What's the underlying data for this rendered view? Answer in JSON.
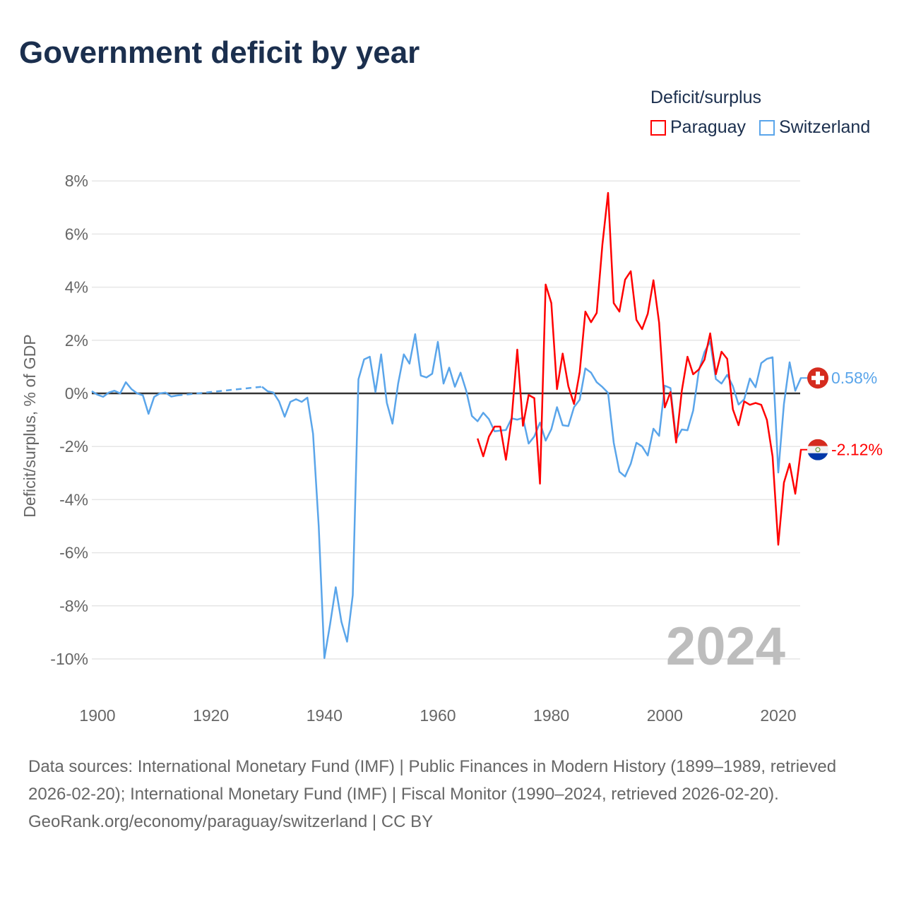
{
  "title": "Government deficit by year",
  "legend": {
    "title": "Deficit/surplus",
    "items": [
      {
        "label": "Paraguay",
        "color": "#ff0000"
      },
      {
        "label": "Switzerland",
        "color": "#5aa5ea"
      }
    ]
  },
  "year_label": "2024",
  "end_labels": {
    "switzerland": "0.58%",
    "paraguay": "-2.12%"
  },
  "footer": {
    "sources": "Data sources: International Monetary Fund (IMF) | Public Finances in Modern History (1899–1989, retrieved 2026-02-20); International Monetary Fund (IMF) | Fiscal Monitor (1990–2024, retrieved 2026-02-20).",
    "credit": "GeoRank.org/economy/paraguay/switzerland | CC BY"
  },
  "chart_data": {
    "type": "line",
    "title": "Government deficit by year",
    "xlabel": "",
    "ylabel": "Deficit/surplus, % of GDP",
    "xlim": [
      1899,
      2024
    ],
    "ylim": [
      -11,
      8.5
    ],
    "yticks": [
      8,
      6,
      4,
      2,
      0,
      -2,
      -4,
      -6,
      -8,
      -10
    ],
    "ytick_labels": [
      "8%",
      "6%",
      "4%",
      "2%",
      "0%",
      "-2%",
      "-4%",
      "-6%",
      "-8%",
      "-10%"
    ],
    "xticks": [
      1900,
      1920,
      1940,
      1960,
      1980,
      2000,
      2020
    ],
    "xtick_labels": [
      "1900",
      "1920",
      "1940",
      "1960",
      "1980",
      "2000",
      "2020"
    ],
    "grid": true,
    "legend_position": "top-right",
    "series": [
      {
        "name": "Switzerland",
        "color": "#5aa5ea",
        "start_year": 1899,
        "values": [
          0.08,
          -0.05,
          -0.13,
          0.03,
          0.1,
          0,
          0.42,
          0.16,
          0,
          -0.07,
          -0.77,
          -0.13,
          0,
          0.03,
          -0.12,
          -0.08,
          null,
          null,
          null,
          null,
          null,
          null,
          null,
          null,
          null,
          null,
          null,
          null,
          null,
          null,
          0.25,
          0.08,
          0.03,
          -0.3,
          -0.88,
          -0.32,
          -0.22,
          -0.32,
          -0.16,
          -1.52,
          -5.0,
          -9.97,
          -8.7,
          -7.3,
          -8.6,
          -9.35,
          -7.6,
          0.53,
          1.28,
          1.38,
          0.05,
          1.47,
          -0.35,
          -1.14,
          0.37,
          1.47,
          1.12,
          2.23,
          0.67,
          0.6,
          0.74,
          1.94,
          0.37,
          0.97,
          0.25,
          0.78,
          0.1,
          -0.85,
          -1.05,
          -0.73,
          -0.97,
          -1.43,
          -1.4,
          -1.38,
          -0.94,
          -0.99,
          -0.92,
          -1.89,
          -1.62,
          -1.1,
          -1.78,
          -1.35,
          -0.52,
          -1.2,
          -1.23,
          -0.52,
          -0.24,
          0.94,
          0.78,
          0.42,
          0.24,
          0.02,
          -1.86,
          -2.95,
          -3.13,
          -2.65,
          -1.86,
          -2.0,
          -2.34,
          -1.33,
          -1.6,
          0.29,
          0.2,
          -1.73,
          -1.36,
          -1.39,
          -0.65,
          0.85,
          1.56,
          1.96,
          0.54,
          0.37,
          0.7,
          0.27,
          -0.42,
          -0.22,
          0.56,
          0.23,
          1.14,
          1.3,
          1.36,
          -2.98,
          -0.4,
          1.17,
          0.1,
          0.58
        ]
      },
      {
        "name": "Paraguay",
        "color": "#ff0000",
        "start_year": 1967,
        "values": [
          -1.7,
          -2.37,
          -1.63,
          -1.25,
          -1.25,
          -2.5,
          -0.97,
          1.65,
          -1.22,
          -0.06,
          -0.18,
          -3.4,
          4.1,
          3.4,
          0.16,
          1.5,
          0.27,
          -0.4,
          0.8,
          3.08,
          2.68,
          3.03,
          5.6,
          7.55,
          3.4,
          3.08,
          4.28,
          4.6,
          2.77,
          2.42,
          3.0,
          4.26,
          2.66,
          -0.53,
          0.05,
          -1.85,
          0.1,
          1.38,
          0.72,
          0.9,
          1.27,
          2.26,
          0.72,
          1.57,
          1.3,
          -0.6,
          -1.2,
          -0.3,
          -0.43,
          -0.36,
          -0.43,
          -1.0,
          -2.38,
          -5.7,
          -3.36,
          -2.65,
          -3.78,
          -2.12
        ]
      }
    ]
  }
}
